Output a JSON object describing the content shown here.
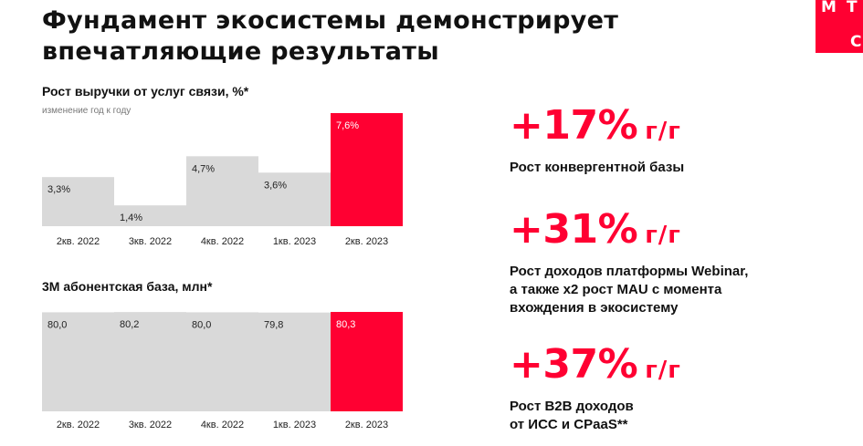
{
  "header": {
    "title_line1": "Фундамент экосистемы демонстрирует",
    "title_line2": "впечатляющие результаты",
    "logo_letters": [
      "М",
      "Т",
      "С"
    ]
  },
  "colors": {
    "accent": "#ff0032",
    "bar_gray": "#d9d9d9",
    "text": "#111111"
  },
  "charts": [
    {
      "title": "Рост выручки от услуг связи, %*",
      "subtitle": "изменение год к году"
    },
    {
      "title": "3М абонентская база, млн*",
      "subtitle": ""
    }
  ],
  "chart_data": [
    {
      "type": "bar",
      "title": "Рост выручки от услуг связи, %*",
      "subtitle": "изменение год к году",
      "categories": [
        "2кв. 2022",
        "3кв. 2022",
        "4кв. 2022",
        "1кв. 2023",
        "2кв. 2023"
      ],
      "values": [
        3.3,
        1.4,
        4.7,
        3.6,
        7.6
      ],
      "labels": [
        "3,3%",
        "1,4%",
        "4,7%",
        "3,6%",
        "7,6%"
      ],
      "highlight_index": 4,
      "ylim": [
        0,
        7.6
      ],
      "grid": false,
      "legend": "none"
    },
    {
      "type": "bar",
      "title": "3М абонентская база, млн*",
      "categories": [
        "2кв. 2022",
        "3кв. 2022",
        "4кв. 2022",
        "1кв. 2023",
        "2кв. 2023"
      ],
      "values": [
        80.0,
        80.2,
        80.0,
        79.8,
        80.3
      ],
      "labels": [
        "80,0",
        "80,2",
        "80,0",
        "79,8",
        "80,3"
      ],
      "highlight_index": 4,
      "ylim": [
        0,
        80.3
      ],
      "grid": false,
      "legend": "none"
    }
  ],
  "kpis": [
    {
      "value": "+17%",
      "unit": "г/г",
      "desc_lines": [
        "Рост конвергентной базы"
      ]
    },
    {
      "value": "+31%",
      "unit": "г/г",
      "desc_lines": [
        "Рост доходов платформы Webinar,",
        "а также х2 рост MAU с момента",
        "вхождения в экосистему"
      ]
    },
    {
      "value": "+37%",
      "unit": "г/г",
      "desc_lines": [
        "Рост B2B доходов",
        "от ИСС и CPaaS**"
      ]
    }
  ]
}
